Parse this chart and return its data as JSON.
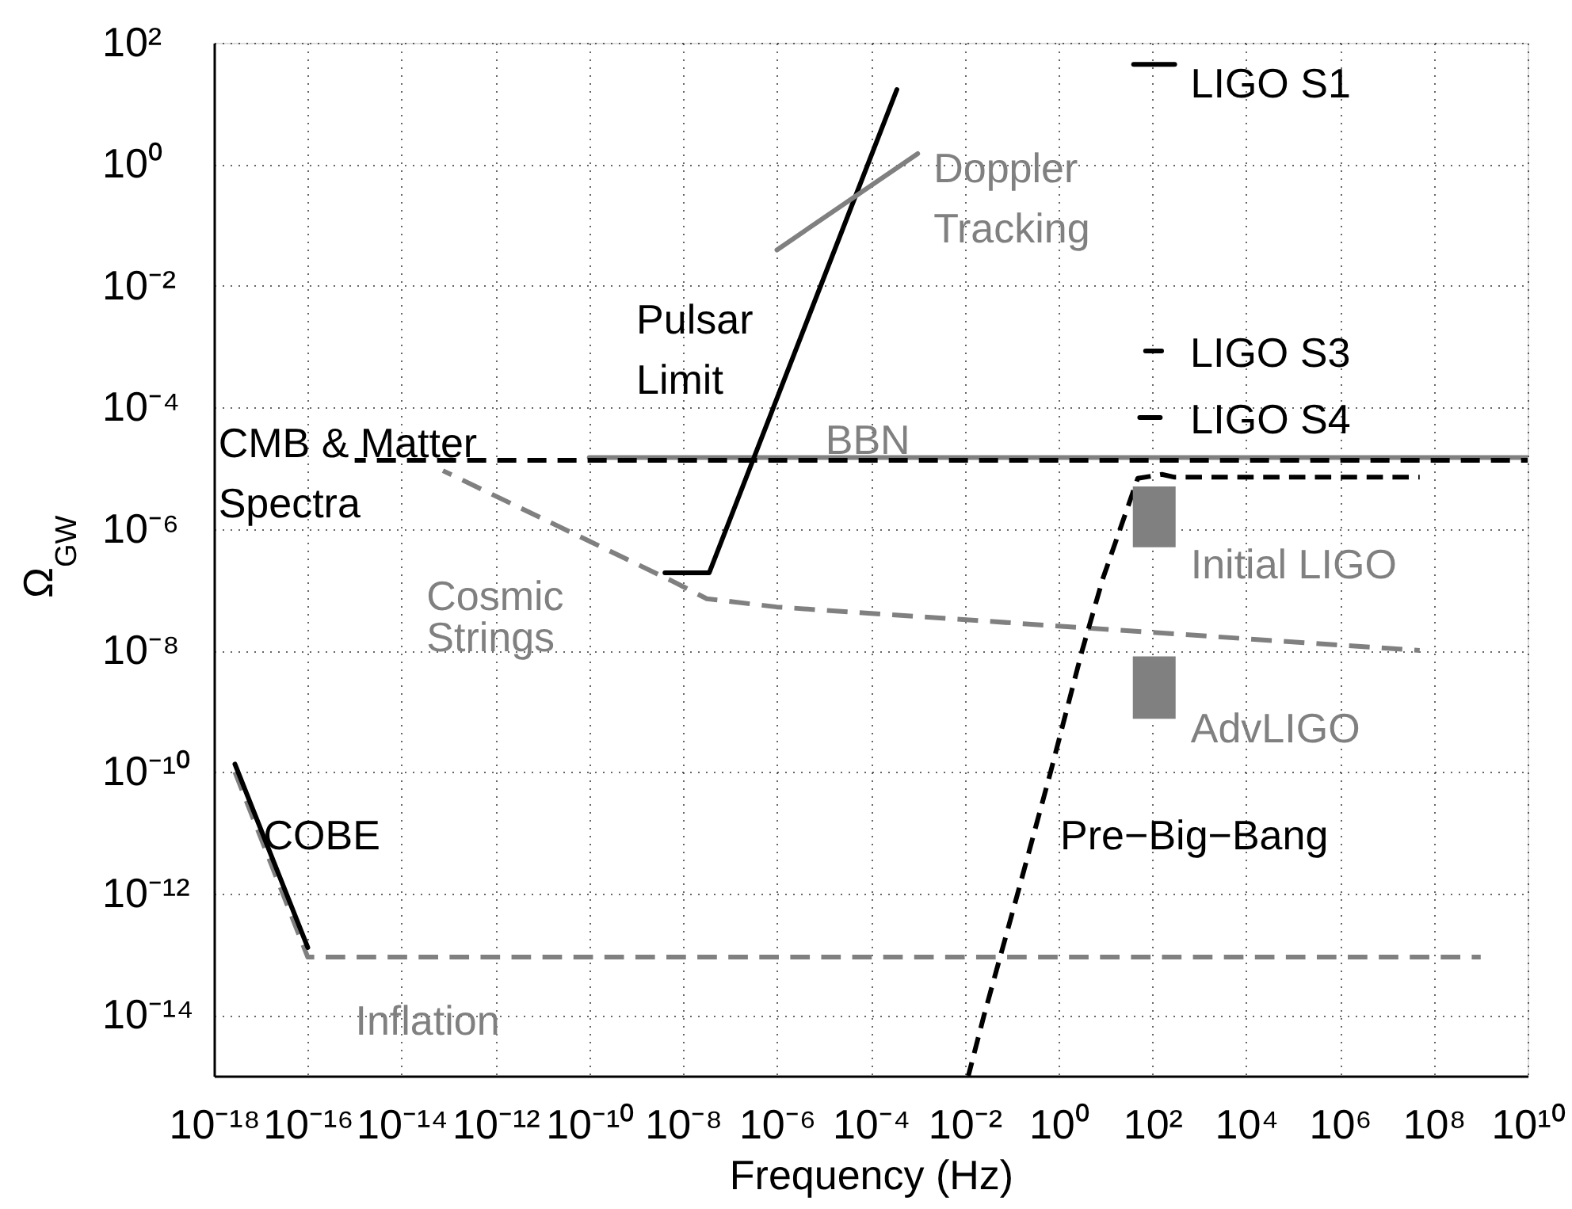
{
  "chart_data": {
    "type": "line",
    "xlabel": "Frequency (Hz)",
    "ylabel": "Ω$_{GW}$",
    "log": "xy",
    "grid": true,
    "xlim": [
      1e-18,
      10000000000.0
    ],
    "ylim": [
      1e-15,
      100
    ],
    "xticks": [
      {
        "value": 1e-18,
        "label": "10⁻¹⁸"
      },
      {
        "value": 1e-16,
        "label": "10⁻¹⁶"
      },
      {
        "value": 1e-14,
        "label": "10⁻¹⁴"
      },
      {
        "value": 1e-12,
        "label": "10⁻¹²"
      },
      {
        "value": 1e-10,
        "label": "10⁻¹⁰"
      },
      {
        "value": 1e-08,
        "label": "10⁻⁸"
      },
      {
        "value": 1e-06,
        "label": "10⁻⁶"
      },
      {
        "value": 0.0001,
        "label": "10⁻⁴"
      },
      {
        "value": 0.01,
        "label": "10⁻²"
      },
      {
        "value": 1,
        "label": "10⁰"
      },
      {
        "value": 100,
        "label": "10²"
      },
      {
        "value": 10000.0,
        "label": "10⁴"
      },
      {
        "value": 1000000.0,
        "label": "10⁶"
      },
      {
        "value": 100000000.0,
        "label": "10⁸"
      },
      {
        "value": 10000000000.0,
        "label": "10¹⁰"
      }
    ],
    "yticks": [
      {
        "value": 1e-14,
        "label": "10⁻¹⁴"
      },
      {
        "value": 1e-12,
        "label": "10⁻¹²"
      },
      {
        "value": 1e-10,
        "label": "10⁻¹⁰"
      },
      {
        "value": 1e-08,
        "label": "10⁻⁸"
      },
      {
        "value": 1e-06,
        "label": "10⁻⁶"
      },
      {
        "value": 0.0001,
        "label": "10⁻⁴"
      },
      {
        "value": 0.01,
        "label": "10⁻²"
      },
      {
        "value": 1,
        "label": "10⁰"
      },
      {
        "value": 100,
        "label": "10²"
      }
    ],
    "series": [
      {
        "name": "Inflation",
        "color": "#808080",
        "line_style": "dashed",
        "x": [
          2.8e-18,
          1e-16,
          1000000000.0
        ],
        "values": [
          1e-10,
          9e-14,
          9e-14
        ]
      },
      {
        "name": "COBE",
        "color": "#000000",
        "line_style": "solid",
        "x": [
          2.8e-18,
          1e-16
        ],
        "values": [
          1.35e-10,
          1.3e-13
        ]
      },
      {
        "name": "BBN",
        "color": "#808080",
        "line_style": "solid",
        "x": [
          1e-10,
          10000000000.0
        ],
        "values": [
          1.5e-05,
          1.5e-05
        ]
      },
      {
        "name": "CMB & Matter\nSpectra",
        "color": "#000000",
        "line_style": "dashed",
        "x": [
          1e-15,
          10000000000.0
        ],
        "values": [
          1.35e-05,
          1.35e-05
        ]
      },
      {
        "name": "Cosmic\nStrings",
        "color": "#808080",
        "line_style": "dashed",
        "x": [
          7.6e-14,
          1e-10,
          6.3e-09,
          3.2e-08,
          1e-06,
          50000000.0
        ],
        "values": [
          9.1e-06,
          6.3e-07,
          1.35e-07,
          7.1e-08,
          5.2e-08,
          1e-08
        ]
      },
      {
        "name": "Pulsar\nLimit",
        "color": "#000000",
        "line_style": "solid",
        "x": [
          4.1e-09,
          3.6e-08,
          0.00036
        ],
        "values": [
          1.9e-07,
          1.9e-07,
          17
        ]
      },
      {
        "name": "Doppler\nTracking",
        "color": "#808080",
        "line_style": "solid",
        "x": [
          1e-06,
          0.001
        ],
        "values": [
          0.039,
          1.5
        ]
      },
      {
        "name": "Pre−Big−Bang",
        "color": "#000000",
        "line_style": "dashed",
        "x": [
          0.012,
          0.026,
          0.135,
          0.68,
          3.2,
          8.9,
          49,
          160,
          300,
          50000000.0
        ],
        "values": [
          1e-15,
          1e-14,
          1e-12,
          1e-10,
          1e-08,
          1.55e-07,
          6.8e-06,
          7.9e-06,
          7.1e-06,
          7.1e-06
        ]
      },
      {
        "name": "LIGO S1",
        "color": "#000000",
        "line_style": "solid",
        "x": [
          40,
          300
        ],
        "values": [
          44,
          44
        ]
      },
      {
        "name": "LIGO S3",
        "color": "#000000",
        "line_style": "solid",
        "x": [
          72,
          158
        ],
        "values": [
          0.00085,
          0.00085
        ]
      },
      {
        "name": "LIGO S4",
        "color": "#000000",
        "line_style": "solid",
        "x": [
          54,
          148
        ],
        "values": [
          6.8e-05,
          6.8e-05
        ]
      },
      {
        "name": "Initial LIGO",
        "color": "#808080",
        "type": "bar",
        "x": [
          110
        ],
        "base": [
          5e-07
        ],
        "values": [
          4.5e-06
        ]
      },
      {
        "name": "AdvLIGO",
        "color": "#808080",
        "type": "bar",
        "x": [
          110
        ],
        "base": [
          7.5e-10
        ],
        "values": [
          7.25e-09
        ]
      }
    ]
  }
}
